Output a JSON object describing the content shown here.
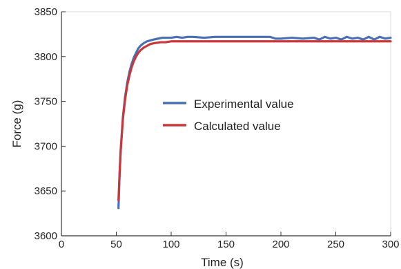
{
  "chart_data": {
    "type": "line",
    "xlabel": "Time (s)",
    "ylabel": "Force (g)",
    "xlim": [
      0,
      300
    ],
    "ylim": [
      3600,
      3850
    ],
    "x_ticks": [
      0,
      50,
      100,
      150,
      200,
      250,
      300
    ],
    "y_ticks": [
      3600,
      3650,
      3700,
      3750,
      3800,
      3850
    ],
    "x_tick_labels": [
      "0",
      "50",
      "100",
      "150",
      "200",
      "250",
      "300"
    ],
    "y_tick_labels": [
      "3600",
      "3650",
      "3700",
      "3750",
      "3800",
      "3850"
    ],
    "grid": false,
    "legend_position": "center-right",
    "series": [
      {
        "name": "Experimental value",
        "color": "#4a6fb5",
        "x": [
          52,
          53,
          54,
          56,
          58,
          60,
          62,
          64,
          66,
          68,
          70,
          72,
          75,
          78,
          81,
          84,
          88,
          92,
          96,
          100,
          105,
          110,
          115,
          120,
          130,
          140,
          150,
          160,
          170,
          180,
          190,
          195,
          200,
          210,
          220,
          230,
          235,
          240,
          245,
          250,
          255,
          260,
          265,
          270,
          275,
          280,
          285,
          290,
          295,
          300
        ],
        "y": [
          3631,
          3668,
          3695,
          3732,
          3755,
          3771,
          3783,
          3792,
          3799,
          3804,
          3809,
          3812,
          3815,
          3817,
          3818,
          3819,
          3820,
          3821,
          3821,
          3821,
          3822,
          3821,
          3822,
          3822,
          3821,
          3822,
          3822,
          3822,
          3822,
          3822,
          3822,
          3820,
          3820,
          3821,
          3820,
          3821,
          3819,
          3822,
          3820,
          3821,
          3819,
          3822,
          3820,
          3821,
          3819,
          3822,
          3819,
          3822,
          3820,
          3821
        ]
      },
      {
        "name": "Calculated value",
        "color": "#c8383a",
        "x": [
          52,
          53,
          54,
          56,
          58,
          60,
          62,
          64,
          66,
          68,
          70,
          72,
          75,
          78,
          81,
          85,
          90,
          95,
          100,
          110,
          120,
          140,
          160,
          200,
          250,
          300
        ],
        "y": [
          3640,
          3670,
          3695,
          3730,
          3752,
          3768,
          3779,
          3788,
          3795,
          3800,
          3804,
          3807,
          3810,
          3812,
          3814,
          3815,
          3816,
          3816,
          3817,
          3817,
          3817,
          3817,
          3817,
          3817,
          3817,
          3817
        ]
      }
    ]
  }
}
